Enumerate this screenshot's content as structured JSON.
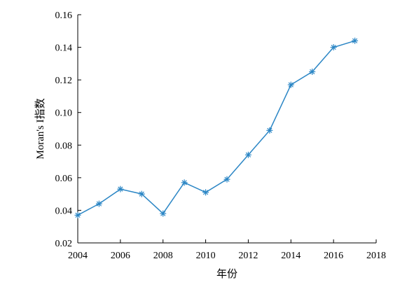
{
  "chart_data": {
    "type": "line",
    "title": "",
    "xlabel": "年份",
    "ylabel": "Moran's I指数",
    "xlim": [
      2004,
      2018
    ],
    "ylim": [
      0.02,
      0.16
    ],
    "x_ticks": [
      "2004",
      "2006",
      "2008",
      "2010",
      "2012",
      "2014",
      "2016",
      "2018"
    ],
    "y_ticks": [
      "0.02",
      "0.04",
      "0.06",
      "0.08",
      "0.10",
      "0.12",
      "0.14",
      "0.16"
    ],
    "grid": false,
    "legend": "none",
    "marker": "asterisk",
    "series": [
      {
        "color": "#2b86c5",
        "x": [
          2004,
          2005,
          2006,
          2007,
          2008,
          2009,
          2010,
          2011,
          2012,
          2013,
          2014,
          2015,
          2016,
          2017
        ],
        "y": [
          0.037,
          0.044,
          0.053,
          0.05,
          0.038,
          0.057,
          0.051,
          0.059,
          0.074,
          0.089,
          0.117,
          0.125,
          0.14,
          0.144
        ]
      }
    ]
  }
}
